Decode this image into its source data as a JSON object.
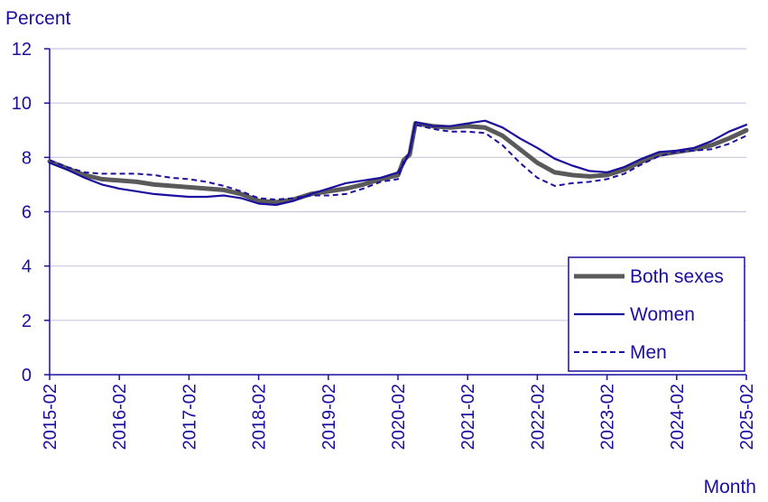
{
  "chart_data": {
    "type": "line",
    "title": "",
    "ylabel": "Percent",
    "xlabel": "Month",
    "ylim": [
      0,
      12
    ],
    "yticks": [
      0,
      2,
      4,
      6,
      8,
      10,
      12
    ],
    "xlim": [
      "2015-02",
      "2025-02"
    ],
    "xtick_labels": [
      "2015-02",
      "2016-02",
      "2017-02",
      "2018-02",
      "2019-02",
      "2020-02",
      "2021-02",
      "2022-02",
      "2023-02",
      "2024-02",
      "2025-02"
    ],
    "grid": "horizontal",
    "legend_position": "bottom-right",
    "colors": {
      "axis": "#1a0f9e",
      "grid": "#c8c8e0",
      "text": "#1a0f9e"
    },
    "series": [
      {
        "name": "Both sexes",
        "color": "#5a5a5a",
        "style": "solid-thick",
        "points": [
          [
            "2015-02",
            7.85
          ],
          [
            "2015-05",
            7.6
          ],
          [
            "2015-08",
            7.35
          ],
          [
            "2015-11",
            7.2
          ],
          [
            "2016-02",
            7.15
          ],
          [
            "2016-05",
            7.1
          ],
          [
            "2016-08",
            7.0
          ],
          [
            "2016-11",
            6.95
          ],
          [
            "2017-02",
            6.9
          ],
          [
            "2017-05",
            6.85
          ],
          [
            "2017-08",
            6.8
          ],
          [
            "2017-11",
            6.65
          ],
          [
            "2018-02",
            6.4
          ],
          [
            "2018-05",
            6.35
          ],
          [
            "2018-08",
            6.45
          ],
          [
            "2018-11",
            6.65
          ],
          [
            "2019-02",
            6.75
          ],
          [
            "2019-05",
            6.85
          ],
          [
            "2019-08",
            7.0
          ],
          [
            "2019-11",
            7.2
          ],
          [
            "2020-02",
            7.35
          ],
          [
            "2020-03",
            7.9
          ],
          [
            "2020-04",
            8.1
          ],
          [
            "2020-05",
            9.25
          ],
          [
            "2020-08",
            9.15
          ],
          [
            "2020-11",
            9.1
          ],
          [
            "2021-02",
            9.15
          ],
          [
            "2021-05",
            9.1
          ],
          [
            "2021-08",
            8.8
          ],
          [
            "2021-11",
            8.3
          ],
          [
            "2022-02",
            7.8
          ],
          [
            "2022-05",
            7.45
          ],
          [
            "2022-08",
            7.35
          ],
          [
            "2022-11",
            7.3
          ],
          [
            "2023-02",
            7.35
          ],
          [
            "2023-05",
            7.55
          ],
          [
            "2023-08",
            7.85
          ],
          [
            "2023-11",
            8.1
          ],
          [
            "2024-02",
            8.2
          ],
          [
            "2024-05",
            8.3
          ],
          [
            "2024-08",
            8.45
          ],
          [
            "2024-11",
            8.7
          ],
          [
            "2025-02",
            9.0
          ]
        ]
      },
      {
        "name": "Women",
        "color": "#1a0f9e",
        "style": "solid",
        "points": [
          [
            "2015-02",
            7.8
          ],
          [
            "2015-05",
            7.55
          ],
          [
            "2015-08",
            7.25
          ],
          [
            "2015-11",
            7.0
          ],
          [
            "2016-02",
            6.85
          ],
          [
            "2016-05",
            6.75
          ],
          [
            "2016-08",
            6.65
          ],
          [
            "2016-11",
            6.6
          ],
          [
            "2017-02",
            6.55
          ],
          [
            "2017-05",
            6.55
          ],
          [
            "2017-08",
            6.6
          ],
          [
            "2017-11",
            6.5
          ],
          [
            "2018-02",
            6.3
          ],
          [
            "2018-05",
            6.25
          ],
          [
            "2018-08",
            6.4
          ],
          [
            "2018-11",
            6.65
          ],
          [
            "2019-02",
            6.85
          ],
          [
            "2019-05",
            7.05
          ],
          [
            "2019-08",
            7.15
          ],
          [
            "2019-11",
            7.25
          ],
          [
            "2020-02",
            7.45
          ],
          [
            "2020-03",
            7.75
          ],
          [
            "2020-04",
            8.2
          ],
          [
            "2020-05",
            9.3
          ],
          [
            "2020-08",
            9.15
          ],
          [
            "2020-11",
            9.15
          ],
          [
            "2021-02",
            9.25
          ],
          [
            "2021-05",
            9.35
          ],
          [
            "2021-08",
            9.1
          ],
          [
            "2021-11",
            8.7
          ],
          [
            "2022-02",
            8.35
          ],
          [
            "2022-05",
            7.95
          ],
          [
            "2022-08",
            7.7
          ],
          [
            "2022-11",
            7.5
          ],
          [
            "2023-02",
            7.45
          ],
          [
            "2023-05",
            7.65
          ],
          [
            "2023-08",
            7.95
          ],
          [
            "2023-11",
            8.2
          ],
          [
            "2024-02",
            8.25
          ],
          [
            "2024-05",
            8.35
          ],
          [
            "2024-08",
            8.6
          ],
          [
            "2024-11",
            8.95
          ],
          [
            "2025-02",
            9.2
          ]
        ]
      },
      {
        "name": "Men",
        "color": "#1a0f9e",
        "style": "dashed",
        "points": [
          [
            "2015-02",
            7.9
          ],
          [
            "2015-05",
            7.65
          ],
          [
            "2015-08",
            7.45
          ],
          [
            "2015-11",
            7.4
          ],
          [
            "2016-02",
            7.4
          ],
          [
            "2016-05",
            7.4
          ],
          [
            "2016-08",
            7.35
          ],
          [
            "2016-11",
            7.25
          ],
          [
            "2017-02",
            7.2
          ],
          [
            "2017-05",
            7.1
          ],
          [
            "2017-08",
            6.95
          ],
          [
            "2017-11",
            6.75
          ],
          [
            "2018-02",
            6.5
          ],
          [
            "2018-05",
            6.45
          ],
          [
            "2018-08",
            6.5
          ],
          [
            "2018-11",
            6.6
          ],
          [
            "2019-02",
            6.6
          ],
          [
            "2019-05",
            6.65
          ],
          [
            "2019-08",
            6.85
          ],
          [
            "2019-11",
            7.1
          ],
          [
            "2020-02",
            7.2
          ],
          [
            "2020-03",
            7.9
          ],
          [
            "2020-04",
            8.15
          ],
          [
            "2020-05",
            9.2
          ],
          [
            "2020-08",
            9.05
          ],
          [
            "2020-11",
            8.95
          ],
          [
            "2021-02",
            8.95
          ],
          [
            "2021-05",
            8.9
          ],
          [
            "2021-08",
            8.45
          ],
          [
            "2021-11",
            7.8
          ],
          [
            "2022-02",
            7.25
          ],
          [
            "2022-05",
            6.95
          ],
          [
            "2022-08",
            7.05
          ],
          [
            "2022-11",
            7.1
          ],
          [
            "2023-02",
            7.2
          ],
          [
            "2023-05",
            7.4
          ],
          [
            "2023-08",
            7.75
          ],
          [
            "2023-11",
            8.05
          ],
          [
            "2024-02",
            8.2
          ],
          [
            "2024-05",
            8.25
          ],
          [
            "2024-08",
            8.3
          ],
          [
            "2024-11",
            8.5
          ],
          [
            "2025-02",
            8.8
          ]
        ]
      }
    ]
  }
}
